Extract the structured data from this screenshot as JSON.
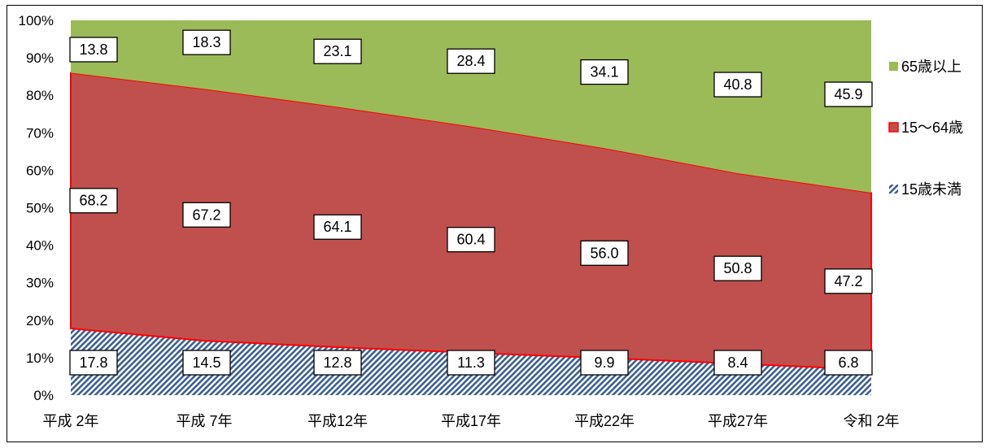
{
  "chart_data": {
    "type": "area",
    "stacked": true,
    "percent": true,
    "categories": [
      "平成 2年",
      "平成 7年",
      "平成12年",
      "平成17年",
      "平成22年",
      "平成27年",
      "令和 2年"
    ],
    "series": [
      {
        "name": "15歳未満",
        "values": [
          17.8,
          14.5,
          12.8,
          11.3,
          9.9,
          8.4,
          6.8
        ],
        "color": "#4f6f9e",
        "pattern": "diagonal-hatch"
      },
      {
        "name": "15〜64歳",
        "values": [
          68.2,
          67.2,
          64.1,
          60.4,
          56.0,
          50.8,
          47.2
        ],
        "color": "#c0504d",
        "stroke": "#ff0000"
      },
      {
        "name": "65歳以上",
        "values": [
          13.8,
          18.3,
          23.1,
          28.4,
          34.1,
          40.8,
          45.9
        ],
        "color": "#9bbb59"
      }
    ],
    "ylim": [
      0,
      100
    ],
    "yticks": [
      "0%",
      "10%",
      "20%",
      "30%",
      "40%",
      "50%",
      "60%",
      "70%",
      "80%",
      "90%",
      "100%"
    ],
    "legend_position": "right",
    "legend_order": [
      "65歳以上",
      "15〜64歳",
      "15歳未満"
    ],
    "grid": false
  }
}
